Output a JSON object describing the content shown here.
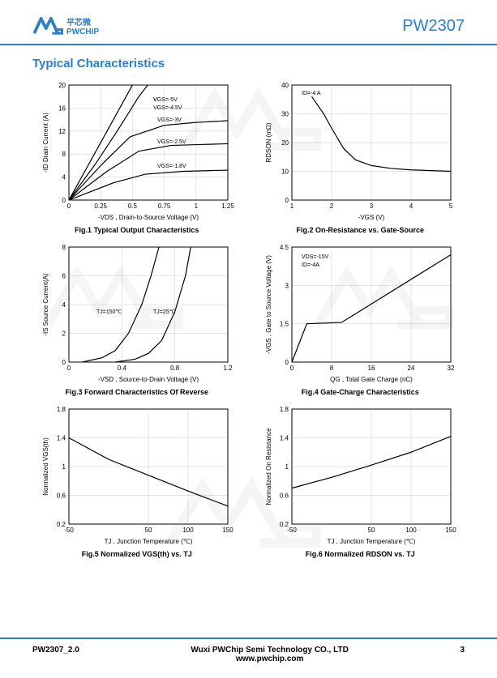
{
  "header": {
    "logo_cn": "平芯微",
    "logo_en": "PWCHIP",
    "part_number": "PW2307",
    "brand_color": "#2a7fc9"
  },
  "section_title": "Typical Characteristics",
  "charts": {
    "fig1": {
      "type": "line",
      "caption": "Fig.1 Typical Output Characteristics",
      "xlabel": "-VDS , Drain-to-Source Voltage (V)",
      "ylabel": "-ID Drain Current (A)",
      "xlim": [
        0,
        1.25
      ],
      "ylim": [
        0,
        20
      ],
      "xticks": [
        0,
        0.25,
        0.5,
        0.75,
        1,
        1.25
      ],
      "yticks": [
        0,
        4,
        8,
        12,
        16,
        20
      ],
      "grid_color": "#cccccc",
      "line_color": "#000000",
      "series": [
        {
          "label": "VGS=-5V",
          "points": [
            [
              0,
              0
            ],
            [
              0.15,
              6
            ],
            [
              0.3,
              12
            ],
            [
              0.45,
              18
            ],
            [
              0.5,
              20
            ]
          ]
        },
        {
          "label": "VGS=-4.5V",
          "points": [
            [
              0,
              0
            ],
            [
              0.2,
              6
            ],
            [
              0.38,
              12
            ],
            [
              0.55,
              18
            ],
            [
              0.62,
              20
            ]
          ]
        },
        {
          "label": "VGS=-3V",
          "points": [
            [
              0,
              0
            ],
            [
              0.25,
              6
            ],
            [
              0.48,
              11
            ],
            [
              0.75,
              13
            ],
            [
              1.0,
              13.5
            ],
            [
              1.25,
              13.8
            ]
          ]
        },
        {
          "label": "VGS=-2.5V",
          "points": [
            [
              0,
              0
            ],
            [
              0.3,
              5
            ],
            [
              0.55,
              8.5
            ],
            [
              0.8,
              9.5
            ],
            [
              1.25,
              9.8
            ]
          ]
        },
        {
          "label": "VGS=-1.8V",
          "points": [
            [
              0,
              0
            ],
            [
              0.35,
              3
            ],
            [
              0.6,
              4.5
            ],
            [
              0.9,
              5
            ],
            [
              1.25,
              5.2
            ]
          ]
        }
      ]
    },
    "fig2": {
      "type": "line",
      "caption": "Fig.2 On-Resistance vs. Gate-Source",
      "xlabel": "-VGS (V)",
      "ylabel": "RDSON (mΩ)",
      "xlim": [
        1,
        5
      ],
      "ylim": [
        0,
        40
      ],
      "xticks": [
        1,
        2,
        3,
        4,
        5
      ],
      "yticks": [
        0,
        10,
        20,
        30,
        40
      ],
      "annotation": "ID=-4 A",
      "grid_color": "#cccccc",
      "line_color": "#000000",
      "series": [
        {
          "points": [
            [
              1.5,
              36
            ],
            [
              1.8,
              30
            ],
            [
              2.0,
              25
            ],
            [
              2.3,
              18
            ],
            [
              2.6,
              14
            ],
            [
              3.0,
              12
            ],
            [
              3.5,
              11
            ],
            [
              4.0,
              10.5
            ],
            [
              5.0,
              10
            ]
          ]
        }
      ]
    },
    "fig3": {
      "type": "line",
      "caption": "Fig.3 Forward Characteristics Of Reverse",
      "xlabel": "-VSD , Source-to-Drain Voltage (V)",
      "ylabel": "-IS Source Current(A)",
      "xlim": [
        0,
        1.2
      ],
      "ylim": [
        0,
        8
      ],
      "xticks": [
        0,
        0.4,
        0.8,
        1.2
      ],
      "yticks": [
        0,
        2,
        4,
        6,
        8
      ],
      "grid_color": "#cccccc",
      "line_color": "#000000",
      "series": [
        {
          "label": "TJ=150℃",
          "points": [
            [
              0.1,
              0
            ],
            [
              0.25,
              0.3
            ],
            [
              0.35,
              0.8
            ],
            [
              0.45,
              2
            ],
            [
              0.55,
              4
            ],
            [
              0.62,
              6
            ],
            [
              0.68,
              8
            ]
          ]
        },
        {
          "label": "TJ=25℃",
          "points": [
            [
              0.35,
              0
            ],
            [
              0.5,
              0.2
            ],
            [
              0.6,
              0.6
            ],
            [
              0.7,
              1.5
            ],
            [
              0.8,
              3.5
            ],
            [
              0.88,
              6
            ],
            [
              0.92,
              8
            ]
          ]
        }
      ]
    },
    "fig4": {
      "type": "line",
      "caption": "Fig.4 Gate-Charge Characteristics",
      "xlabel": "QG , Total Gate Charge (nC)",
      "ylabel": "-VGS , Gate to Source Voltage (V)",
      "xlim": [
        0,
        32
      ],
      "ylim": [
        0,
        4.5
      ],
      "xticks": [
        0,
        8,
        16,
        24,
        32
      ],
      "yticks": [
        0,
        1.5,
        3,
        4.5
      ],
      "annotation": "VDS=-15V\nID=-4A",
      "grid_color": "#cccccc",
      "line_color": "#000000",
      "series": [
        {
          "points": [
            [
              0,
              0
            ],
            [
              3,
              1.5
            ],
            [
              10,
              1.55
            ],
            [
              32,
              4.2
            ]
          ]
        }
      ]
    },
    "fig5": {
      "type": "line",
      "caption": "Fig.5 Normalized VGS(th) vs. TJ",
      "xlabel": "TJ , Junction Temperature (℃)",
      "ylabel": "Normalized VGS(th)",
      "xlim": [
        -50,
        150
      ],
      "ylim": [
        0.2,
        1.8
      ],
      "xticks": [
        50,
        100,
        150,
        -50
      ],
      "yticks": [
        0.2,
        0.6,
        1,
        1.4,
        1.8
      ],
      "grid_color": "#cccccc",
      "line_color": "#000000",
      "series": [
        {
          "points": [
            [
              -50,
              1.4
            ],
            [
              0,
              1.1
            ],
            [
              50,
              0.88
            ],
            [
              100,
              0.66
            ],
            [
              150,
              0.45
            ]
          ]
        }
      ]
    },
    "fig6": {
      "type": "line",
      "caption": "Fig.6 Normalized RDSON vs. TJ",
      "xlabel": "TJ , Junction Temperature (℃)",
      "ylabel": "Normalized On Resistance",
      "xlim": [
        -50,
        150
      ],
      "ylim": [
        0.2,
        1.8
      ],
      "xticks": [
        50,
        100,
        150,
        -50
      ],
      "yticks": [
        0.2,
        0.6,
        1,
        1.4,
        1.8
      ],
      "grid_color": "#cccccc",
      "line_color": "#000000",
      "series": [
        {
          "points": [
            [
              -50,
              0.7
            ],
            [
              0,
              0.85
            ],
            [
              50,
              1.02
            ],
            [
              100,
              1.2
            ],
            [
              150,
              1.42
            ]
          ]
        }
      ]
    }
  },
  "footer": {
    "doc_rev": "PW2307_2.0",
    "company": "Wuxi PWChip Semi Technology CO., LTD",
    "website": "www.pwchip.com",
    "page_num": "3"
  }
}
